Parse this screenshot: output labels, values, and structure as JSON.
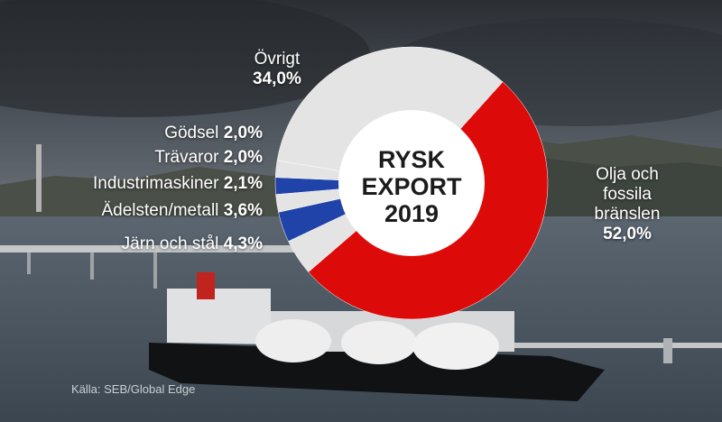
{
  "chart_data": {
    "type": "donut",
    "title_lines": [
      "RYSK",
      "EXPORT",
      "2019"
    ],
    "slices": [
      {
        "name": "Olja och fossila bränslen",
        "label_lines": [
          "Olja och",
          "fossila",
          "bränslen"
        ],
        "value": 52.0,
        "display": "52,0%",
        "color": "#dd0a0a"
      },
      {
        "name": "Järn och stål",
        "value": 4.3,
        "display": "4,3%",
        "color": "#e4e4e4"
      },
      {
        "name": "Ädelsten/metall",
        "value": 3.6,
        "display": "3,6%",
        "color": "#1f43a8"
      },
      {
        "name": "Industrimaskiner",
        "value": 2.1,
        "display": "2,1%",
        "color": "#e4e4e4"
      },
      {
        "name": "Trävaror",
        "value": 2.0,
        "display": "2,0%",
        "color": "#1f43a8"
      },
      {
        "name": "Gödsel",
        "value": 2.0,
        "display": "2,0%",
        "color": "#e4e4e4"
      },
      {
        "name": "Övrigt",
        "value": 34.0,
        "display": "34,0%",
        "color": "#e4e4e4"
      }
    ]
  },
  "source": "Källa: SEB/Global Edge"
}
